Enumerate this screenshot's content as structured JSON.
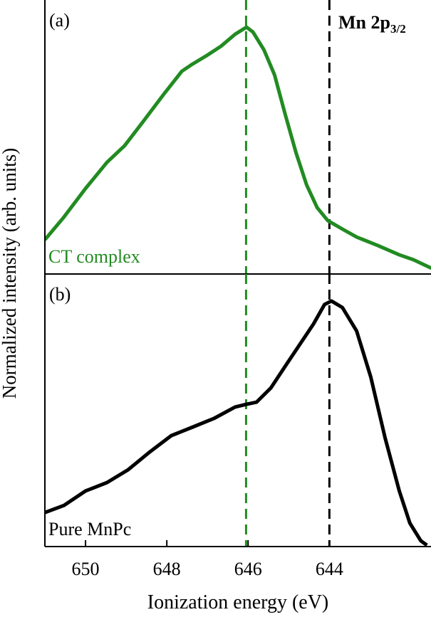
{
  "chart_data": [
    {
      "type": "line",
      "label": "(a)",
      "annotation": "Mn 2p",
      "annotation_sub": "3/2",
      "ylabel": "Normalized intensity (arb. units)",
      "xlim": [
        651,
        641.5
      ],
      "ylim": [
        0,
        1
      ],
      "series": [
        {
          "name": "CT complex",
          "color": "#228b22",
          "x": [
            651.0,
            650.53,
            650.0,
            649.47,
            649.04,
            648.6,
            648.07,
            647.63,
            647.37,
            647.02,
            646.67,
            646.32,
            646.04,
            645.88,
            645.61,
            645.35,
            645.09,
            644.82,
            644.56,
            644.3,
            644.04,
            643.68,
            643.33,
            642.81,
            642.28,
            641.93,
            641.49
          ],
          "values": [
            0.125,
            0.208,
            0.312,
            0.408,
            0.468,
            0.553,
            0.657,
            0.74,
            0.766,
            0.797,
            0.831,
            0.875,
            0.901,
            0.883,
            0.818,
            0.727,
            0.584,
            0.442,
            0.325,
            0.242,
            0.195,
            0.164,
            0.135,
            0.104,
            0.07,
            0.052,
            0.021
          ]
        }
      ],
      "vlines": [
        {
          "value": 646.05,
          "color": "#228b22"
        },
        {
          "value": 644.0,
          "color": "#000000"
        }
      ]
    },
    {
      "type": "line",
      "label": "(b)",
      "xlabel": "Ionization energy (eV)",
      "xlim": [
        651,
        641.5
      ],
      "ylim": [
        0,
        1
      ],
      "xticks": [
        650,
        648,
        646,
        644
      ],
      "series": [
        {
          "name": "Pure MnPc",
          "color": "#000000",
          "x": [
            651.0,
            650.53,
            650.0,
            649.47,
            648.95,
            648.42,
            647.89,
            647.37,
            646.84,
            646.32,
            646.04,
            645.79,
            645.44,
            645.09,
            644.74,
            644.39,
            644.12,
            643.95,
            643.68,
            643.33,
            642.98,
            642.63,
            642.28,
            642.02,
            641.75,
            641.6
          ],
          "values": [
            0.125,
            0.151,
            0.204,
            0.235,
            0.282,
            0.347,
            0.407,
            0.438,
            0.47,
            0.512,
            0.522,
            0.53,
            0.582,
            0.661,
            0.739,
            0.817,
            0.888,
            0.901,
            0.877,
            0.791,
            0.621,
            0.399,
            0.204,
            0.086,
            0.021,
            0.005
          ]
        }
      ],
      "vlines": [
        {
          "value": 646.05,
          "color": "#228b22"
        },
        {
          "value": 644.0,
          "color": "#000000"
        }
      ]
    }
  ]
}
